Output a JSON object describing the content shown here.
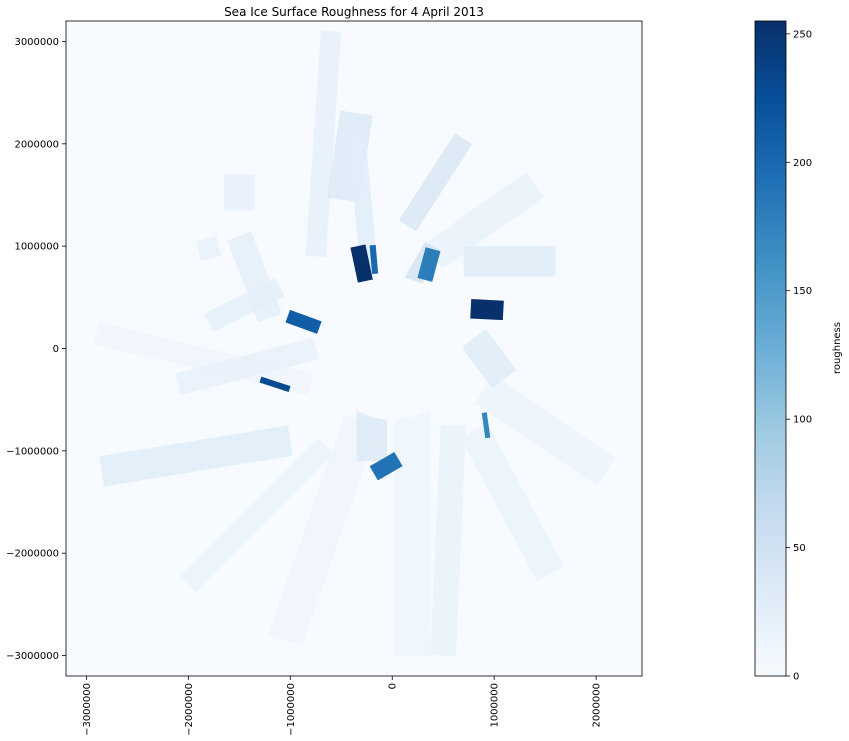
{
  "chart_data": {
    "type": "heatmap",
    "title": "Sea Ice Surface Roughness for 4 April 2013",
    "xlabel": "",
    "ylabel": "",
    "xlim": [
      -3200000,
      2450000
    ],
    "ylim": [
      -3200000,
      3200000
    ],
    "x_ticks": [
      -3000000,
      -2000000,
      -1000000,
      0,
      1000000,
      2000000
    ],
    "x_tick_labels": [
      "−3000000",
      "−2000000",
      "−1000000",
      "0",
      "1000000",
      "2000000"
    ],
    "y_ticks": [
      3000000,
      2000000,
      1000000,
      0,
      -1000000,
      -2000000,
      -3000000
    ],
    "y_tick_labels": [
      "3000000",
      "2000000",
      "1000000",
      "0",
      "−1000000",
      "−2000000",
      "−3000000"
    ],
    "colormap": "Blues",
    "background_color": "#f7fbff",
    "colorbar": {
      "label": "roughness",
      "range": [
        0,
        255
      ],
      "ticks": [
        0,
        50,
        100,
        150,
        200,
        250
      ],
      "tick_labels": [
        "0",
        "50",
        "100",
        "150",
        "200",
        "250"
      ]
    },
    "colormap_stops": [
      "#f7fbff",
      "#deebf7",
      "#c6dbef",
      "#9ecae1",
      "#6baed6",
      "#4292c6",
      "#2171b5",
      "#08519c",
      "#08306b"
    ],
    "data_gap_circle": {
      "center": [
        0,
        0
      ],
      "radius": 700000
    },
    "swaths": [
      {
        "x1": -750000,
        "y1": 900000,
        "x2": -600000,
        "y2": 3100000,
        "width": 200000,
        "value": 22
      },
      {
        "x1": -480000,
        "y1": 1450000,
        "x2": -350000,
        "y2": 2300000,
        "width": 320000,
        "value": 35
      },
      {
        "x1": -230000,
        "y1": 800000,
        "x2": -350000,
        "y2": 2100000,
        "width": 170000,
        "value": 28
      },
      {
        "x1": 150000,
        "y1": 1200000,
        "x2": 700000,
        "y2": 2050000,
        "width": 200000,
        "value": 38
      },
      {
        "x1": 400000,
        "y1": 900000,
        "x2": 1400000,
        "y2": 1600000,
        "width": 300000,
        "value": 18
      },
      {
        "x1": 700000,
        "y1": 850000,
        "x2": 1600000,
        "y2": 850000,
        "width": 300000,
        "value": 30
      },
      {
        "x1": -1500000,
        "y1": 1700000,
        "x2": -1500000,
        "y2": 1350000,
        "width": 300000,
        "value": 22
      },
      {
        "x1": -1200000,
        "y1": 300000,
        "x2": -1500000,
        "y2": 1100000,
        "width": 250000,
        "value": 26
      },
      {
        "x1": -1900000,
        "y1": 950000,
        "x2": -1700000,
        "y2": 1000000,
        "width": 200000,
        "value": 20
      },
      {
        "x1": -1100000,
        "y1": 600000,
        "x2": -1800000,
        "y2": 250000,
        "width": 200000,
        "value": 24
      },
      {
        "x1": -800000,
        "y1": -350000,
        "x2": -2900000,
        "y2": 150000,
        "width": 220000,
        "value": 12
      },
      {
        "x1": -750000,
        "y1": 0,
        "x2": -2100000,
        "y2": -350000,
        "width": 220000,
        "value": 20
      },
      {
        "x1": -1000000,
        "y1": -900000,
        "x2": -2850000,
        "y2": -1200000,
        "width": 300000,
        "value": 28
      },
      {
        "x1": -650000,
        "y1": -950000,
        "x2": -2000000,
        "y2": -2300000,
        "width": 220000,
        "value": 15
      },
      {
        "x1": -300000,
        "y1": -700000,
        "x2": -1050000,
        "y2": -2850000,
        "width": 350000,
        "value": 12
      },
      {
        "x1": 200000,
        "y1": -600000,
        "x2": 200000,
        "y2": -3000000,
        "width": 350000,
        "value": 10
      },
      {
        "x1": 600000,
        "y1": -750000,
        "x2": 500000,
        "y2": -3000000,
        "width": 250000,
        "value": 18
      },
      {
        "x1": 800000,
        "y1": -800000,
        "x2": 1550000,
        "y2": -2200000,
        "width": 300000,
        "value": 16
      },
      {
        "x1": 900000,
        "y1": -400000,
        "x2": 2100000,
        "y2": -1200000,
        "width": 330000,
        "value": 14
      },
      {
        "x1": 800000,
        "y1": 100000,
        "x2": 1100000,
        "y2": -300000,
        "width": 300000,
        "value": 32
      },
      {
        "x1": 200000,
        "y1": 650000,
        "x2": 400000,
        "y2": 1000000,
        "width": 180000,
        "value": 45
      },
      {
        "x1": -200000,
        "y1": -500000,
        "x2": -200000,
        "y2": -1100000,
        "width": 300000,
        "value": 34
      }
    ],
    "hotspots": [
      {
        "x": -300000,
        "y": 830000,
        "w": 150000,
        "h": 350000,
        "angle": -12,
        "value": 255
      },
      {
        "x": -180000,
        "y": 870000,
        "w": 60000,
        "h": 280000,
        "angle": -5,
        "value": 200
      },
      {
        "x": 360000,
        "y": 820000,
        "w": 150000,
        "h": 310000,
        "angle": 15,
        "value": 180
      },
      {
        "x": 930000,
        "y": 380000,
        "w": 320000,
        "h": 190000,
        "angle": 3,
        "value": 255
      },
      {
        "x": -870000,
        "y": 260000,
        "w": 330000,
        "h": 130000,
        "angle": 20,
        "value": 210
      },
      {
        "x": -1150000,
        "y": -350000,
        "w": 300000,
        "h": 60000,
        "angle": 18,
        "value": 230
      },
      {
        "x": -60000,
        "y": -1150000,
        "w": 280000,
        "h": 160000,
        "angle": -30,
        "value": 190
      },
      {
        "x": 920000,
        "y": -750000,
        "w": 50000,
        "h": 250000,
        "angle": -8,
        "value": 170
      }
    ]
  }
}
